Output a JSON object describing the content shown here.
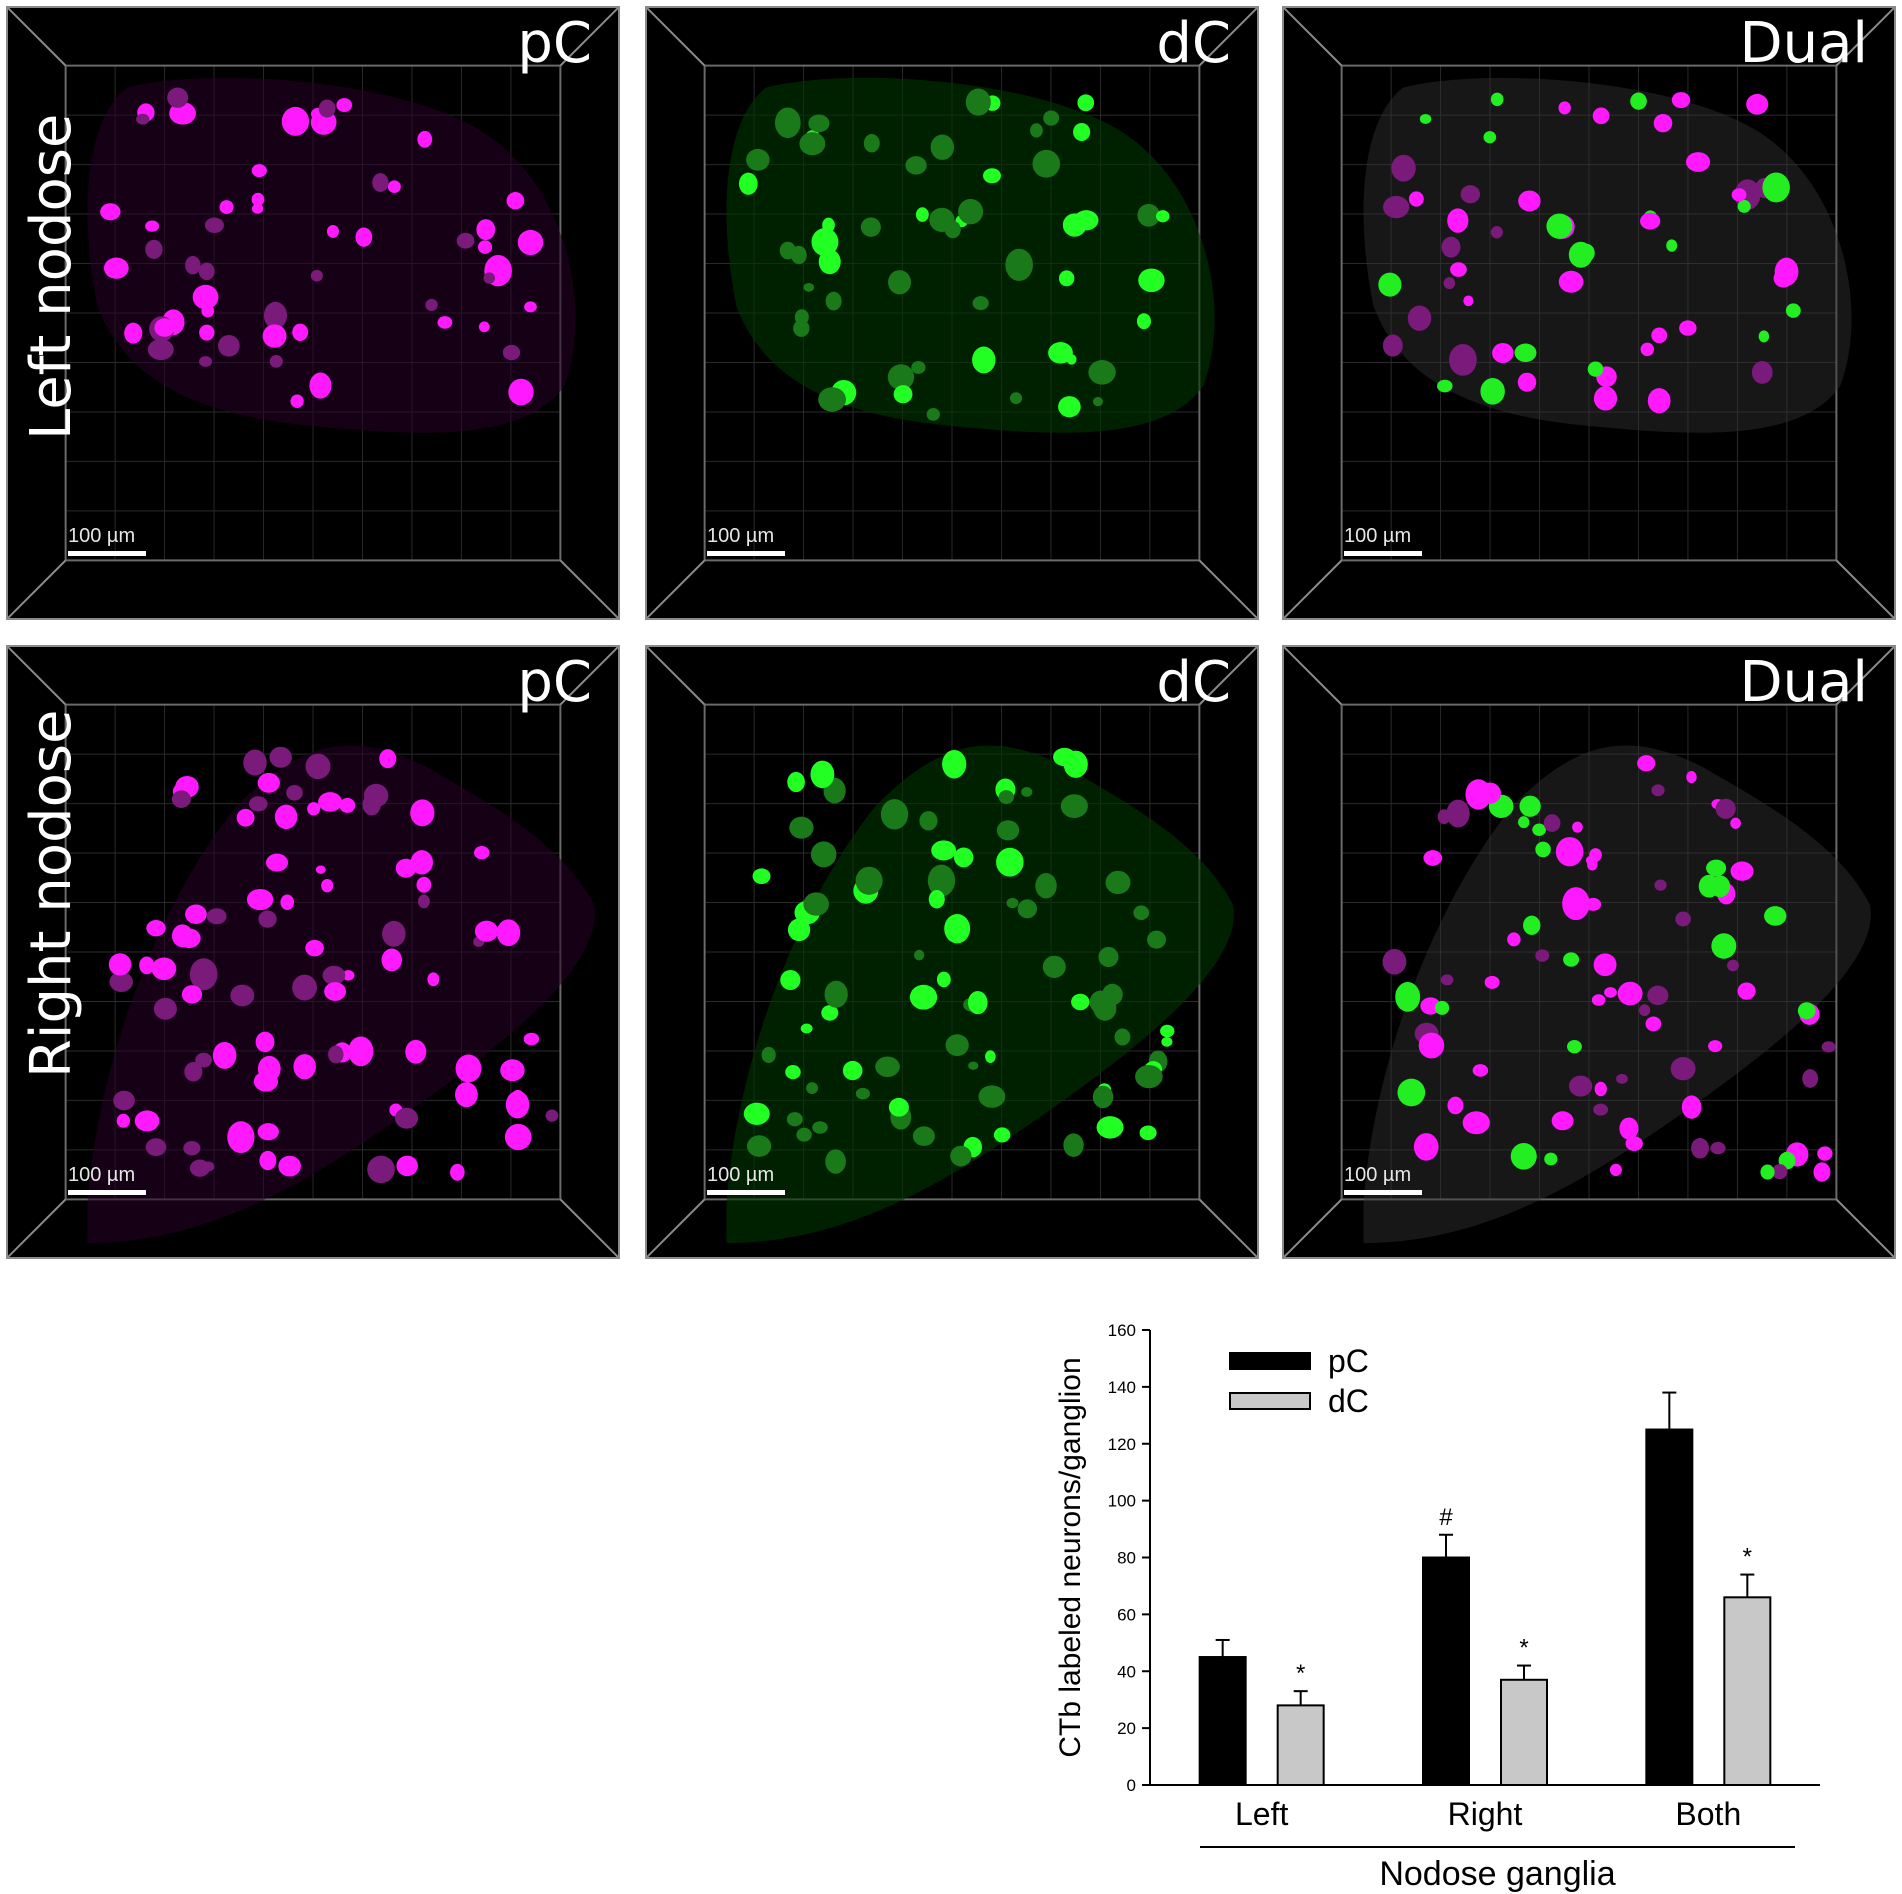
{
  "panels": [
    {
      "row": "left",
      "channel": "pC",
      "label": "pC",
      "scalebar": "100 µm",
      "color": "#ff1aff"
    },
    {
      "row": "left",
      "channel": "dC",
      "label": "dC",
      "scalebar": "100 µm",
      "color": "#22ee22"
    },
    {
      "row": "left",
      "channel": "dual",
      "label": "Dual",
      "scalebar": "100 µm",
      "color": "mixed"
    },
    {
      "row": "right",
      "channel": "pC",
      "label": "pC",
      "scalebar": "100 µm",
      "color": "#ff1aff"
    },
    {
      "row": "right",
      "channel": "dC",
      "label": "dC",
      "scalebar": "100 µm",
      "color": "#22ee22"
    },
    {
      "row": "right",
      "channel": "dual",
      "label": "Dual",
      "scalebar": "100 µm",
      "color": "mixed"
    }
  ],
  "row_labels": {
    "left": "Left nodose",
    "right": "Right nodose"
  },
  "chart_data": {
    "type": "bar",
    "categories": [
      "Left",
      "Right",
      "Both"
    ],
    "series": [
      {
        "name": "pC",
        "color": "#000000",
        "values": [
          45,
          80,
          125
        ],
        "errors": [
          6,
          8,
          13
        ],
        "annotations": [
          "",
          "#",
          ""
        ]
      },
      {
        "name": "dC",
        "color": "#c8c8c8",
        "values": [
          28,
          37,
          66
        ],
        "errors": [
          5,
          5,
          8
        ],
        "annotations": [
          "*",
          "*",
          "*"
        ]
      }
    ],
    "ylabel": "CTb labeled neurons/ganglion",
    "xlabel": "Nodose ganglia",
    "ylim": [
      0,
      160
    ],
    "yticks": [
      0,
      20,
      40,
      60,
      80,
      100,
      120,
      140,
      160
    ],
    "legend": "top-left",
    "grid": false
  }
}
